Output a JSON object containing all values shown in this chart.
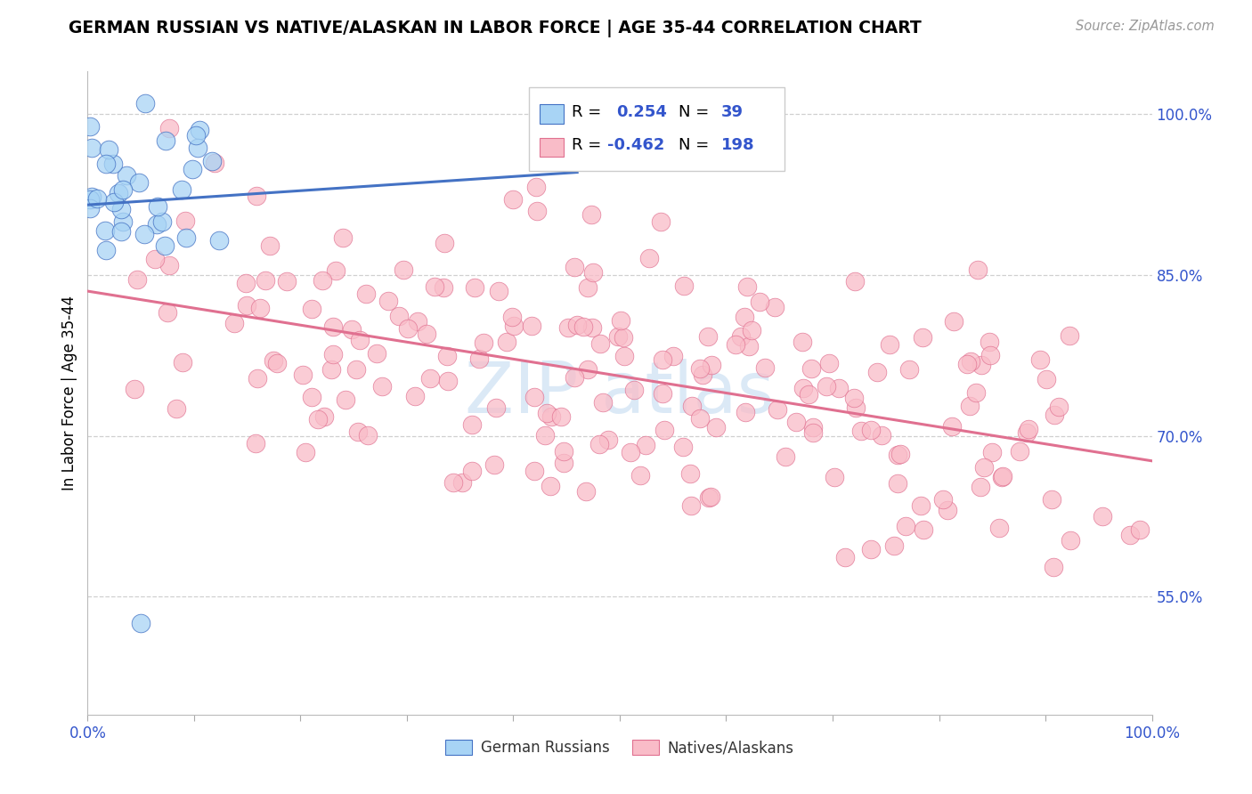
{
  "title": "GERMAN RUSSIAN VS NATIVE/ALASKAN IN LABOR FORCE | AGE 35-44 CORRELATION CHART",
  "source": "Source: ZipAtlas.com",
  "ylabel": "In Labor Force | Age 35-44",
  "xlim": [
    0.0,
    1.0
  ],
  "ylim": [
    0.44,
    1.04
  ],
  "yticks_right": [
    0.55,
    0.7,
    0.85,
    1.0
  ],
  "ytick_labels_right": [
    "55.0%",
    "70.0%",
    "85.0%",
    "100.0%"
  ],
  "color_blue": "#a8d4f5",
  "color_pink": "#f9bcc8",
  "line_blue": "#4472c4",
  "line_pink": "#e07090",
  "watermark_color": "#b8d4ee",
  "grid_color": "#d0d0d0"
}
